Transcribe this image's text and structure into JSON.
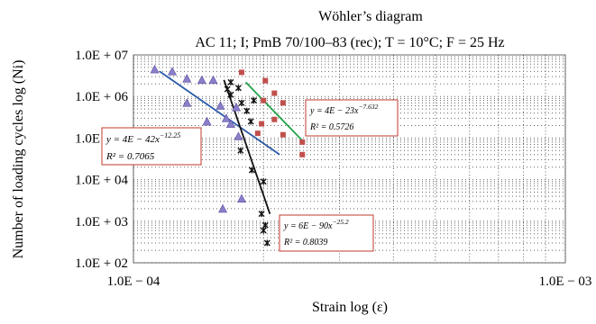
{
  "chart_data": {
    "type": "scatter",
    "title": "Wöhler’s diagram",
    "subtitle": "AC 11; I; PmB 70/100–83 (rec); T = 10°C; F = 25 Hz",
    "xlabel": "Strain log (ε)",
    "ylabel": "Number of loading cycles log (Ni)",
    "x_scale": "log",
    "y_scale": "log",
    "xlim": [
      0.0001,
      0.001
    ],
    "ylim": [
      100,
      10000000
    ],
    "x_ticks": [
      {
        "value": 0.0001,
        "label": "1.0E − 04"
      },
      {
        "value": 0.001,
        "label": "1.0E − 03"
      }
    ],
    "y_ticks": [
      {
        "value": 10000000,
        "label": "1.0E + 07"
      },
      {
        "value": 1000000,
        "label": "1.0E + 06"
      },
      {
        "value": 100000,
        "label": "1.0E + 05"
      },
      {
        "value": 10000,
        "label": "1.0E + 04"
      },
      {
        "value": 1000,
        "label": "1.0E + 03"
      },
      {
        "value": 100,
        "label": "1.0E + 02"
      }
    ],
    "grid": true,
    "series": [
      {
        "marker": "triangle",
        "color": "#8a7fc8",
        "points": [
          [
            0.000112,
            4500000
          ],
          [
            0.000123,
            4000000
          ],
          [
            0.000133,
            2700000
          ],
          [
            0.000133,
            700000
          ],
          [
            0.000144,
            2500000
          ],
          [
            0.000148,
            250000
          ],
          [
            0.000153,
            2500000
          ],
          [
            0.000159,
            600000
          ],
          [
            0.000164,
            300000
          ],
          [
            0.000168,
            220000
          ],
          [
            0.000173,
            550000
          ],
          [
            0.000175,
            110000
          ],
          [
            0.000161,
            2000
          ],
          [
            0.000178,
            3500
          ]
        ],
        "fit": {
          "x_range": [
            0.000115,
            0.000218
          ],
          "y_range": [
            4000000,
            40000
          ]
        }
      },
      {
        "marker": "x",
        "color": "#111111",
        "points": [
          [
            0.000168,
            2200000
          ],
          [
            0.000165,
            1500000
          ],
          [
            0.000175,
            1600000
          ],
          [
            0.000168,
            1100000
          ],
          [
            0.00019,
            800000
          ],
          [
            0.000178,
            700000
          ],
          [
            0.000183,
            450000
          ],
          [
            0.000187,
            250000
          ],
          [
            0.000177,
            50000
          ],
          [
            0.000188,
            17000
          ],
          [
            0.0002,
            9000
          ],
          [
            0.000198,
            1500
          ],
          [
            0.000202,
            800
          ],
          [
            0.0002,
            600
          ],
          [
            0.000204,
            300
          ]
        ],
        "fit": {
          "x_range": [
            0.000162,
            0.000207
          ],
          "y_range": [
            2500000,
            1500
          ]
        }
      },
      {
        "marker": "square",
        "color": "#c0504d",
        "points": [
          [
            0.000178,
            3800000
          ],
          [
            0.000202,
            2400000
          ],
          [
            0.000212,
            1200000
          ],
          [
            0.0002,
            800000
          ],
          [
            0.000222,
            700000
          ],
          [
            0.000198,
            220000
          ],
          [
            0.000212,
            280000
          ],
          [
            0.000194,
            130000
          ],
          [
            0.000222,
            120000
          ],
          [
            0.000246,
            80000
          ],
          [
            0.000246,
            40000
          ]
        ],
        "fit": {
          "x_range": [
            0.000182,
            0.000248
          ],
          "y_range": [
            2200000,
            80000
          ]
        }
      }
    ],
    "annotations": [
      {
        "eq": "y = 4E − 42x",
        "exp": "−12.25",
        "r2": "R² = 0.7065"
      },
      {
        "eq": "y = 4E − 23x",
        "exp": "−7.632",
        "r2": "R² = 0.5726"
      },
      {
        "eq": "y = 6E − 90x",
        "exp": "−25.2",
        "r2": "R² = 0.8039"
      }
    ],
    "fit_colors": [
      "#2a5aa8",
      "#111111",
      "#22a34a"
    ],
    "annotation_border_color": "#c0392b"
  }
}
